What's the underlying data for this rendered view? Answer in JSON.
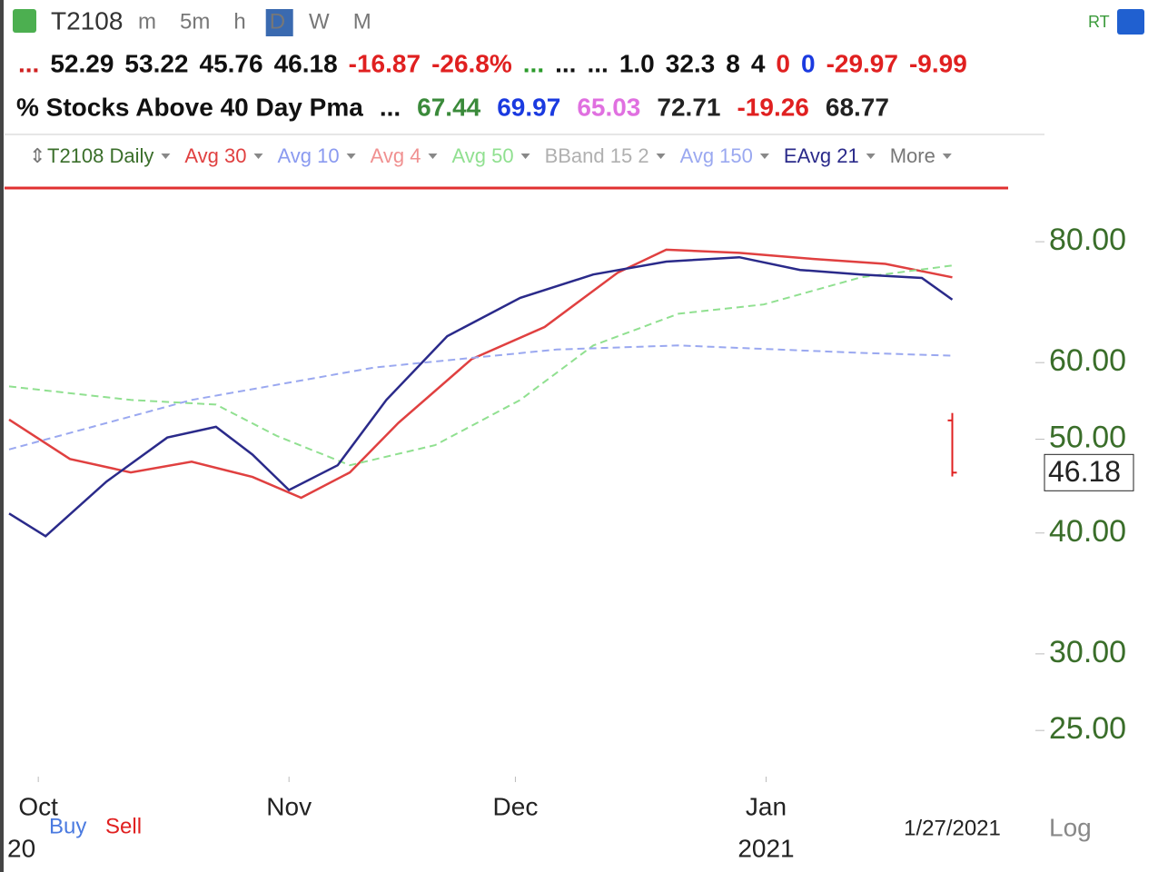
{
  "toolbar": {
    "symbol": "T2108",
    "periods": [
      "m",
      "5m",
      "h",
      "D",
      "W",
      "M"
    ],
    "right": "RT"
  },
  "quote_row": [
    {
      "text": "...",
      "color": "#d02020"
    },
    {
      "text": "52.29",
      "color": "#111"
    },
    {
      "text": "53.22",
      "color": "#111"
    },
    {
      "text": "45.76",
      "color": "#111"
    },
    {
      "text": "46.18",
      "color": "#111"
    },
    {
      "text": "-16.87",
      "color": "#e02020"
    },
    {
      "text": "-26.8%",
      "color": "#e02020"
    },
    {
      "text": "...",
      "color": "#2a9a2a"
    },
    {
      "text": "...",
      "color": "#111"
    },
    {
      "text": "...",
      "color": "#111"
    },
    {
      "text": "1.0",
      "color": "#111"
    },
    {
      "text": "32.3",
      "color": "#111"
    },
    {
      "text": "8",
      "color": "#111"
    },
    {
      "text": "4",
      "color": "#111"
    },
    {
      "text": "0",
      "color": "#e02020"
    },
    {
      "text": "0",
      "color": "#1a3ae0"
    },
    {
      "text": "-29.97",
      "color": "#e02020"
    },
    {
      "text": "-9.99",
      "color": "#e02020"
    }
  ],
  "name_row": [
    {
      "text": "% Stocks Above 40 Day Pma",
      "color": "#111"
    },
    {
      "text": "...",
      "color": "#111"
    },
    {
      "text": "67.44",
      "color": "#3a8a3a"
    },
    {
      "text": "69.97",
      "color": "#1a3ae0"
    },
    {
      "text": "65.03",
      "color": "#e070e0"
    },
    {
      "text": "72.71",
      "color": "#222"
    },
    {
      "text": "-19.26",
      "color": "#e02020"
    },
    {
      "text": "68.77",
      "color": "#222"
    }
  ],
  "chart_data": {
    "type": "line",
    "log_scale": true,
    "legend_extra": [
      {
        "text": "T2108 Daily",
        "color": "#3a6e2a"
      },
      {
        "text": "Avg 10",
        "color": "#8a9af0"
      },
      {
        "text": "Avg 4",
        "color": "#f09090"
      },
      {
        "text": "BBand 15 2",
        "color": "#b0b0b0"
      },
      {
        "text": "More",
        "color": "#777"
      }
    ],
    "series": [
      {
        "name": "Avg 30",
        "color": "#e04040",
        "dash": false,
        "x": [
          0,
          5,
          10,
          15,
          20,
          24,
          28,
          32,
          38,
          44,
          50,
          54,
          60,
          66,
          72,
          77.5
        ],
        "values": [
          52.4,
          47.7,
          46.2,
          47.4,
          45.7,
          43.5,
          46.2,
          52.0,
          60.5,
          65.3,
          74.3,
          78.5,
          77.9,
          76.8,
          75.9,
          73.5
        ]
      },
      {
        "name": "Avg 50",
        "color": "#90e090",
        "dash": true,
        "x": [
          0,
          10,
          17,
          22,
          28,
          35,
          42,
          48,
          55,
          62,
          70,
          77.5
        ],
        "values": [
          56.7,
          54.9,
          54.3,
          50.4,
          47.0,
          49.3,
          54.9,
          62.5,
          67.4,
          68.9,
          73.5,
          75.6
        ]
      },
      {
        "name": "Avg 150",
        "color": "#9aa8f0",
        "dash": true,
        "x": [
          0,
          15,
          30,
          45,
          55,
          70,
          77.5
        ],
        "values": [
          48.8,
          54.9,
          59.3,
          61.9,
          62.5,
          61.4,
          61.0
        ]
      },
      {
        "name": "EAvg 21",
        "color": "#2a2a8a",
        "dash": false,
        "x": [
          0,
          3,
          8,
          13,
          17,
          20,
          23,
          27,
          31,
          36,
          42,
          48,
          54,
          60,
          65,
          70,
          75,
          77.5
        ],
        "values": [
          41.9,
          39.7,
          45.2,
          50.2,
          51.5,
          48.2,
          44.3,
          47.0,
          54.9,
          63.9,
          70.0,
          74.0,
          76.3,
          77.1,
          74.8,
          74.0,
          73.4,
          69.7
        ]
      }
    ],
    "last_bar": {
      "x": 77.5,
      "open": 52.29,
      "high": 53.22,
      "low": 45.76,
      "close": 46.18,
      "color": "#e02020"
    },
    "xlim": [
      0,
      80
    ],
    "ylim": [
      22.4,
      91.3
    ],
    "yticks": [
      {
        "value": 25,
        "label": "25.00"
      },
      {
        "value": 30,
        "label": "30.00"
      },
      {
        "value": 40,
        "label": "40.00"
      },
      {
        "value": 50,
        "label": "50.00"
      },
      {
        "value": 60,
        "label": "60.00"
      },
      {
        "value": 80,
        "label": "80.00"
      }
    ],
    "xticks": [
      {
        "value": 2.4,
        "label": "Oct"
      },
      {
        "value": 23,
        "label": "Nov"
      },
      {
        "value": 41.6,
        "label": "Dec"
      },
      {
        "value": 62.2,
        "label": "Jan"
      }
    ],
    "year_label": "2021",
    "date_label": "1/27/2021",
    "day_label": "20",
    "buy": "Buy",
    "sell": "Sell",
    "scale_label": "Log"
  }
}
